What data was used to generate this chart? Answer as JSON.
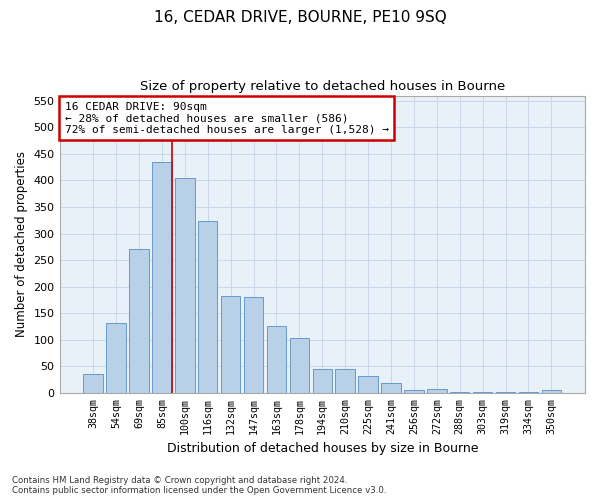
{
  "title1": "16, CEDAR DRIVE, BOURNE, PE10 9SQ",
  "title2": "Size of property relative to detached houses in Bourne",
  "xlabel": "Distribution of detached houses by size in Bourne",
  "ylabel": "Number of detached properties",
  "footer1": "Contains HM Land Registry data © Crown copyright and database right 2024.",
  "footer2": "Contains public sector information licensed under the Open Government Licence v3.0.",
  "categories": [
    "38sqm",
    "54sqm",
    "69sqm",
    "85sqm",
    "100sqm",
    "116sqm",
    "132sqm",
    "147sqm",
    "163sqm",
    "178sqm",
    "194sqm",
    "210sqm",
    "225sqm",
    "241sqm",
    "256sqm",
    "272sqm",
    "288sqm",
    "303sqm",
    "319sqm",
    "334sqm",
    "350sqm"
  ],
  "values": [
    36,
    132,
    271,
    435,
    405,
    323,
    182,
    181,
    125,
    103,
    45,
    44,
    31,
    19,
    5,
    8,
    2,
    1,
    1,
    2,
    5
  ],
  "bar_color": "#b8d0e8",
  "bar_edge_color": "#6699cc",
  "vline_x_index": 3.43,
  "annotation_text": "16 CEDAR DRIVE: 90sqm\n← 28% of detached houses are smaller (586)\n72% of semi-detached houses are larger (1,528) →",
  "annotation_box_color": "#ffffff",
  "annotation_box_edge": "#cc0000",
  "vline_color": "#cc0000",
  "ylim": [
    0,
    560
  ],
  "yticks": [
    0,
    50,
    100,
    150,
    200,
    250,
    300,
    350,
    400,
    450,
    500,
    550
  ],
  "grid_color": "#c8d8e8",
  "plot_bg_color": "#e8f0f8",
  "fig_bg_color": "#ffffff"
}
